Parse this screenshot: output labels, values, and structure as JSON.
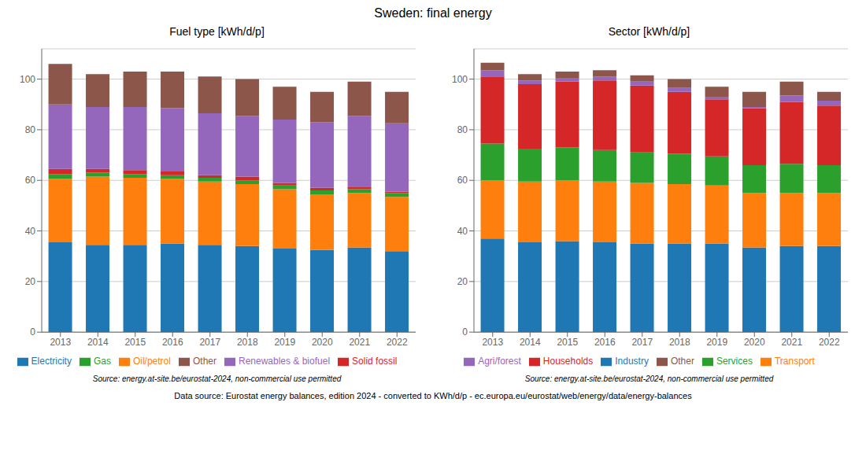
{
  "title": "Sweden: final energy",
  "annotations": [
    "Data source: Eurostat energy balances, edition 2024 - converted to KWh/d/p - ec.europa.eu/eurostat/web/energy/data/energy-balances"
  ],
  "chart_data": [
    {
      "type": "bar",
      "title": "Fuel type [kWh/d/p]",
      "stacked": true,
      "grid": true,
      "legend": "bottom",
      "categories": [
        "2013",
        "2014",
        "2015",
        "2016",
        "2017",
        "2018",
        "2019",
        "2020",
        "2021",
        "2022"
      ],
      "series": [
        {
          "name": "Electricity",
          "color": "#1f77b4",
          "values": [
            35.5,
            34.5,
            34.5,
            35.0,
            34.5,
            34.0,
            33.0,
            32.5,
            33.5,
            32.0
          ]
        },
        {
          "name": "Oil/petrol",
          "color": "#ff7f0e",
          "values": [
            25.0,
            27.0,
            26.5,
            25.5,
            25.0,
            24.5,
            23.5,
            22.0,
            21.5,
            21.5
          ]
        },
        {
          "name": "Gas",
          "color": "#2ca02c",
          "values": [
            2.0,
            1.5,
            1.5,
            1.5,
            1.5,
            1.5,
            1.5,
            1.5,
            1.5,
            1.5
          ]
        },
        {
          "name": "Solid fossil",
          "color": "#d62728",
          "values": [
            2.0,
            1.5,
            1.5,
            1.5,
            1.0,
            1.5,
            1.0,
            1.0,
            1.0,
            0.5
          ]
        },
        {
          "name": "Renewables & biofuel",
          "color": "#9467bd",
          "values": [
            25.5,
            24.5,
            25.0,
            25.0,
            24.5,
            24.0,
            25.0,
            26.0,
            28.0,
            27.0
          ]
        },
        {
          "name": "Other",
          "color": "#8c564b",
          "values": [
            16.0,
            13.0,
            14.0,
            14.5,
            14.5,
            14.5,
            13.0,
            12.0,
            13.5,
            12.5
          ]
        }
      ],
      "ylim": [
        0,
        112
      ],
      "yticks": [
        0,
        20,
        40,
        60,
        80,
        100
      ],
      "annotations": [
        "Source: energy.at-site.be/eurostat-2024, non-commercial use permitted"
      ]
    },
    {
      "type": "bar",
      "title": "Sector [kWh/d/p]",
      "stacked": true,
      "grid": true,
      "legend": "bottom",
      "categories": [
        "2013",
        "2014",
        "2015",
        "2016",
        "2017",
        "2018",
        "2019",
        "2020",
        "2021",
        "2022"
      ],
      "series": [
        {
          "name": "Industry",
          "color": "#1f77b4",
          "values": [
            37.0,
            35.5,
            36.0,
            35.5,
            35.0,
            35.0,
            35.0,
            33.5,
            34.0,
            34.0
          ]
        },
        {
          "name": "Transport",
          "color": "#ff7f0e",
          "values": [
            23.0,
            24.0,
            24.0,
            24.0,
            24.0,
            23.5,
            23.0,
            21.5,
            21.0,
            21.0
          ]
        },
        {
          "name": "Services",
          "color": "#2ca02c",
          "values": [
            14.5,
            13.0,
            13.0,
            12.5,
            12.0,
            12.0,
            11.5,
            11.0,
            11.5,
            11.0
          ]
        },
        {
          "name": "Households",
          "color": "#d62728",
          "values": [
            26.5,
            25.5,
            26.0,
            27.5,
            26.5,
            24.5,
            22.5,
            22.5,
            24.5,
            23.5
          ]
        },
        {
          "name": "Agri/forest",
          "color": "#9467bd",
          "values": [
            2.5,
            1.5,
            1.5,
            1.5,
            1.5,
            1.5,
            1.0,
            0.5,
            2.5,
            2.0
          ]
        },
        {
          "name": "Other",
          "color": "#8c564b",
          "values": [
            3.0,
            2.5,
            2.5,
            2.5,
            2.5,
            3.5,
            4.0,
            6.0,
            5.5,
            3.5
          ]
        }
      ],
      "ylim": [
        0,
        112
      ],
      "yticks": [
        0,
        20,
        40,
        60,
        80,
        100
      ],
      "annotations": [
        "Source: energy.at-site.be/eurostat-2024, non-commercial use permitted"
      ]
    }
  ]
}
